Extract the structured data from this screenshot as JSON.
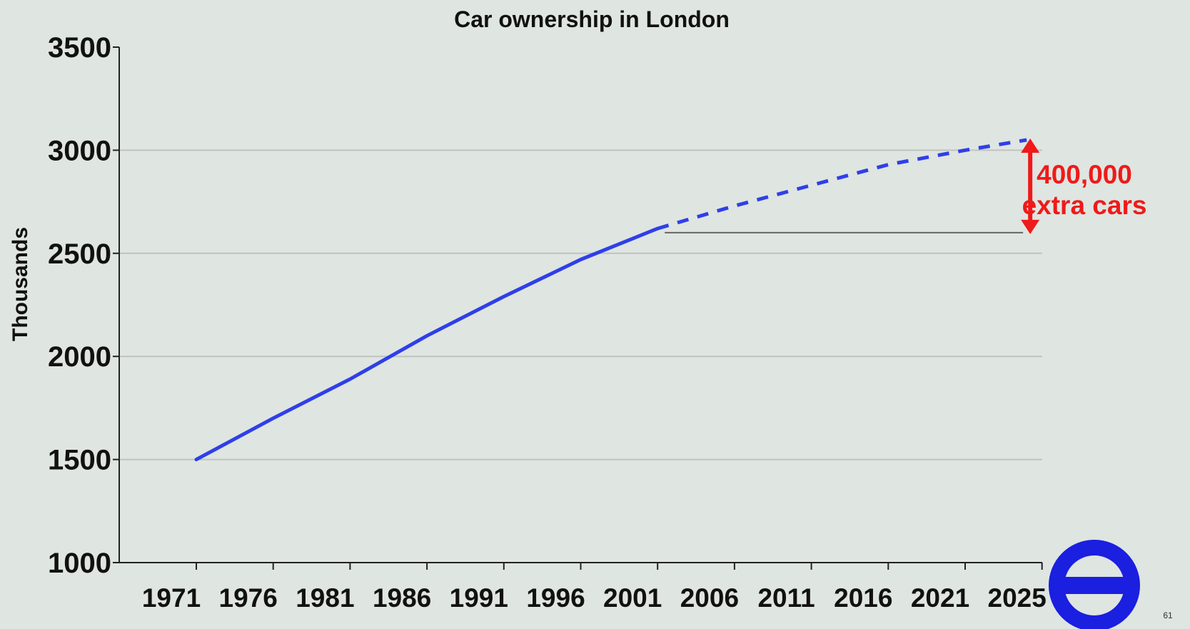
{
  "chart_data": {
    "type": "line",
    "title": "Car ownership in London",
    "xlabel": "",
    "ylabel": "Thousands",
    "categories": [
      "1971",
      "1976",
      "1981",
      "1986",
      "1991",
      "1996",
      "2001",
      "2006",
      "2011",
      "2016",
      "2021",
      "2025"
    ],
    "ylim": [
      1000,
      3500
    ],
    "yticks": [
      1000,
      1500,
      2000,
      2500,
      3000,
      3500
    ],
    "grid": true,
    "series": [
      {
        "style": "solid",
        "color": "#2f3fe8",
        "x": [
          1971,
          1976,
          1981,
          1986,
          1991,
          1996,
          2001
        ],
        "values": [
          1500,
          1700,
          1890,
          2100,
          2290,
          2470,
          2620
        ]
      },
      {
        "style": "dashed",
        "color": "#2f3fe8",
        "x": [
          2001,
          2006,
          2011,
          2016,
          2021,
          2025
        ],
        "values": [
          2620,
          2730,
          2830,
          2930,
          3000,
          3050
        ]
      }
    ],
    "baseline": {
      "value": 2600,
      "from": 2001,
      "to": 2025,
      "color": "#666666"
    },
    "annotation": {
      "lines": [
        "400,000",
        "extra cars"
      ],
      "from_value": 2600,
      "to_value": 3050,
      "at": 2025,
      "color": "#ef1a1a"
    }
  },
  "logo": {
    "name": "roundel-icon",
    "color": "#1a1fe0"
  },
  "page_number": "61",
  "colors": {
    "background": "#dfe5e1",
    "grid": "#bfc4c1",
    "axis": "#222222"
  }
}
